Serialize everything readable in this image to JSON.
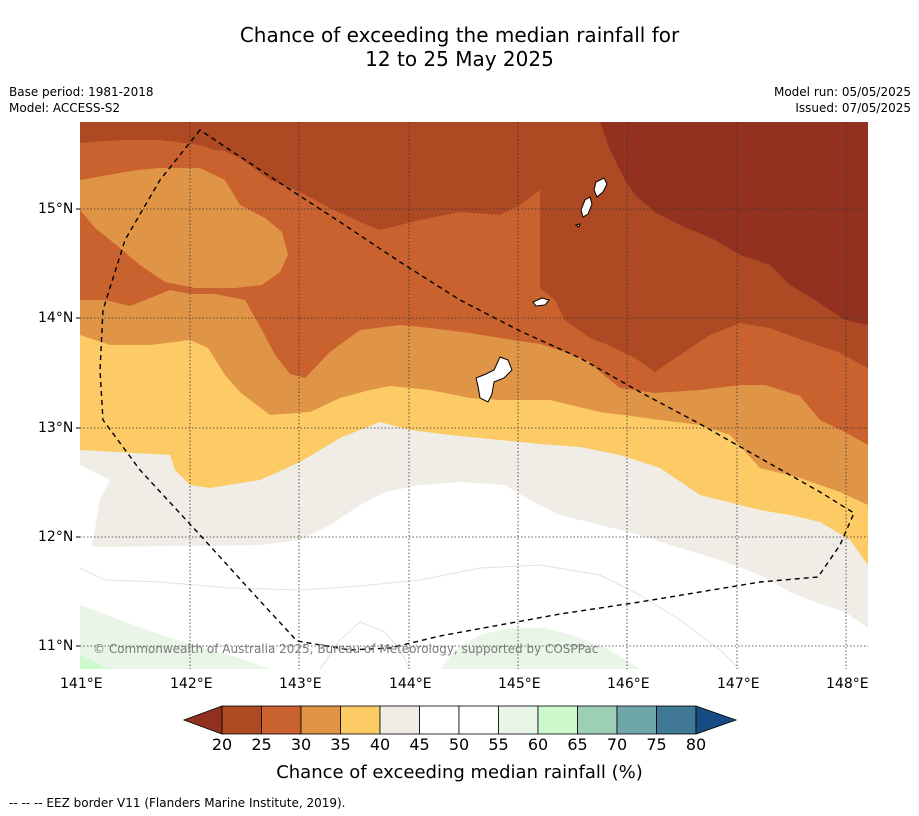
{
  "title_line1": "Chance of exceeding the median rainfall for",
  "title_line2": "12 to 25 May 2025",
  "meta": {
    "base_period": "Base period: 1981-2018",
    "model": "Model: ACCESS-S2",
    "model_run": "Model run: 05/05/2025",
    "issued": "Issued: 07/05/2025"
  },
  "lat_labels": [
    "15°N",
    "14°N",
    "13°N",
    "12°N",
    "11°N"
  ],
  "lon_labels": [
    "141°E",
    "142°E",
    "143°E",
    "144°E",
    "145°E",
    "146°E",
    "147°E",
    "148°E"
  ],
  "copyright": "© Commonwealth of Australia 2025, Bureau of Meteorology, supported by COSPPac",
  "colorbar": {
    "ticks": [
      "20",
      "25",
      "30",
      "35",
      "40",
      "45",
      "50",
      "55",
      "60",
      "65",
      "70",
      "75",
      "80"
    ],
    "colors": [
      "#ad4a23",
      "#c9622f",
      "#e09446",
      "#fdcb65",
      "#f0ece6",
      "#ffffff",
      "#ffffff",
      "#e9f5e7",
      "#ccfacc",
      "#9ccfb6",
      "#6fa6a7",
      "#407895"
    ],
    "under_color": "#933120",
    "over_color": "#164b83",
    "label": "Chance of exceeding median rainfall (%)"
  },
  "footnote": "--  --  -- EEZ border V11 (Flanders Marine Institute, 2019)."
}
